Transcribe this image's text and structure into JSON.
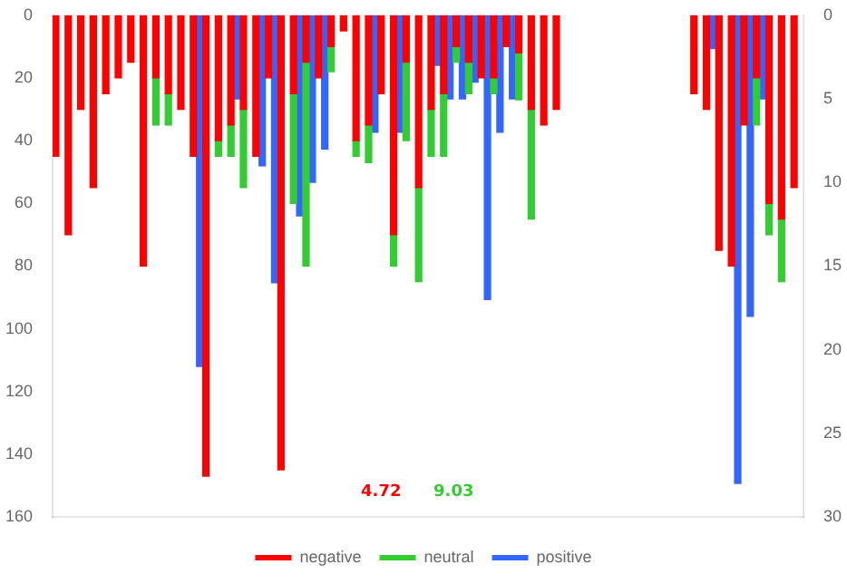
{
  "chart_data": {
    "type": "bar",
    "categories": [
      null,
      null,
      null,
      null,
      null,
      null,
      null,
      null,
      null,
      null,
      null,
      null,
      null,
      null,
      null,
      null,
      null,
      null,
      null,
      null,
      null,
      null,
      null,
      null,
      null,
      null,
      null,
      null,
      null,
      null,
      null,
      null,
      null,
      null,
      null,
      null,
      null,
      null,
      null,
      null,
      null,
      null,
      null,
      null,
      null,
      null,
      null,
      null,
      null,
      null,
      null,
      null,
      null,
      null,
      null,
      null,
      null,
      null,
      null,
      null
    ],
    "series": [
      {
        "name": "negative",
        "color": "#ff0000",
        "values": [
          45,
          70,
          30,
          55,
          25,
          20,
          15,
          80,
          20,
          25,
          30,
          45,
          147,
          40,
          35,
          30,
          45,
          20,
          145,
          25,
          15,
          20,
          10,
          5,
          40,
          35,
          25,
          70,
          15,
          55,
          30,
          25,
          10,
          15,
          20,
          20,
          10,
          12,
          30,
          35,
          30,
          0,
          0,
          0,
          0,
          0,
          0,
          0,
          0,
          0,
          0,
          25,
          30,
          75,
          80,
          35,
          20,
          60,
          65,
          55
        ]
      },
      {
        "name": "neutral",
        "color": "#33cc33",
        "values": [
          0,
          0,
          0,
          0,
          0,
          0,
          0,
          0,
          15,
          10,
          0,
          0,
          0,
          5,
          10,
          25,
          0,
          0,
          0,
          35,
          65,
          0,
          8,
          0,
          5,
          12,
          0,
          10,
          25,
          30,
          15,
          20,
          5,
          10,
          0,
          5,
          0,
          15,
          35,
          0,
          0,
          0,
          0,
          0,
          0,
          0,
          0,
          0,
          0,
          0,
          0,
          0,
          0,
          0,
          0,
          0,
          15,
          10,
          20,
          0
        ]
      },
      {
        "name": "positive",
        "color": "#3366ff",
        "axis": "y2",
        "values": [
          0,
          0,
          0,
          0,
          0,
          0,
          0,
          0,
          0,
          0,
          0,
          21,
          0,
          0,
          5,
          0,
          9,
          16,
          0,
          12,
          10,
          8,
          0,
          0,
          0,
          7,
          0,
          7,
          0,
          0,
          3,
          5,
          5,
          4,
          17,
          7,
          5,
          0,
          0,
          0,
          0,
          0,
          0,
          0,
          0,
          0,
          0,
          0,
          0,
          0,
          0,
          0,
          2,
          0,
          28,
          18,
          5,
          0,
          0,
          0
        ]
      }
    ],
    "ylim": [
      160,
      0
    ],
    "yticks": [
      0,
      20,
      40,
      60,
      80,
      100,
      120,
      140,
      160
    ],
    "y2lim": [
      30,
      0
    ],
    "y2ticks": [
      0,
      5,
      10,
      15,
      20,
      25,
      30
    ],
    "legend": "bottom",
    "stacked": true,
    "annotations": [
      "4.72",
      "9.03"
    ]
  }
}
